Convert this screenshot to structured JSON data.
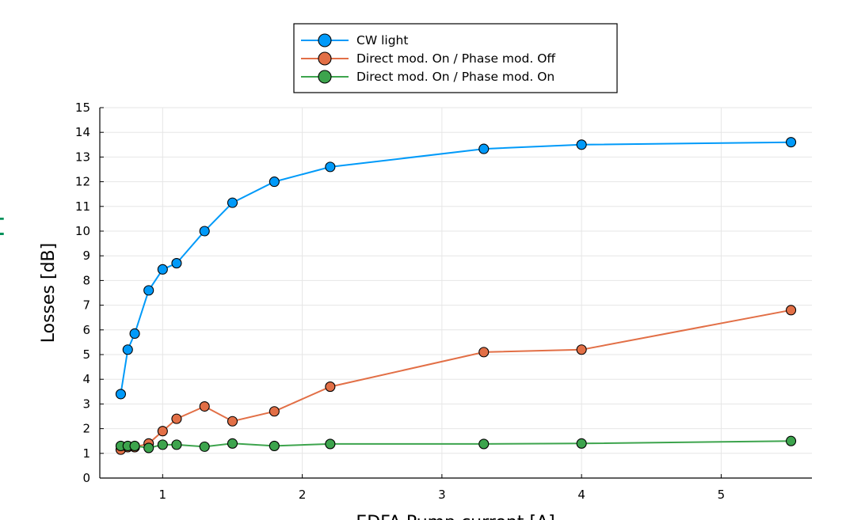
{
  "chart_data": {
    "type": "line",
    "title": "",
    "xlabel": "EDFA Pump current [A]",
    "ylabel": "Losses [dB]",
    "xlim": [
      0.55,
      5.65
    ],
    "ylim": [
      0,
      15
    ],
    "xticks": [
      1,
      2,
      3,
      4,
      5
    ],
    "yticks": [
      0,
      1,
      2,
      3,
      4,
      5,
      6,
      7,
      8,
      9,
      10,
      11,
      12,
      13,
      14,
      15
    ],
    "grid": true,
    "legend_position": "top-center",
    "series": [
      {
        "name": "CW light",
        "color": "#009af9",
        "x": [
          0.7,
          0.75,
          0.8,
          0.9,
          1.0,
          1.1,
          1.3,
          1.5,
          1.8,
          2.2,
          3.3,
          4.0,
          5.5
        ],
        "values": [
          3.4,
          5.2,
          5.85,
          7.6,
          8.45,
          8.7,
          10.0,
          11.15,
          12.0,
          12.6,
          13.33,
          13.5,
          13.6
        ]
      },
      {
        "name": "Direct mod. On / Phase mod. Off",
        "color": "#e26f46",
        "x": [
          0.7,
          0.75,
          0.8,
          0.9,
          1.0,
          1.1,
          1.3,
          1.5,
          1.8,
          2.2,
          3.3,
          4.0,
          5.5
        ],
        "values": [
          1.15,
          1.25,
          1.25,
          1.4,
          1.9,
          2.4,
          2.9,
          2.3,
          2.7,
          3.7,
          5.1,
          5.2,
          6.8
        ]
      },
      {
        "name": "Direct mod. On / Phase mod. On",
        "color": "#3da44d",
        "x": [
          0.7,
          0.75,
          0.8,
          0.9,
          1.0,
          1.1,
          1.3,
          1.5,
          1.8,
          2.2,
          3.3,
          4.0,
          5.5
        ],
        "values": [
          1.3,
          1.3,
          1.3,
          1.22,
          1.35,
          1.35,
          1.27,
          1.4,
          1.3,
          1.38,
          1.38,
          1.4,
          1.5
        ]
      }
    ]
  },
  "left_edge_glyph": "t"
}
